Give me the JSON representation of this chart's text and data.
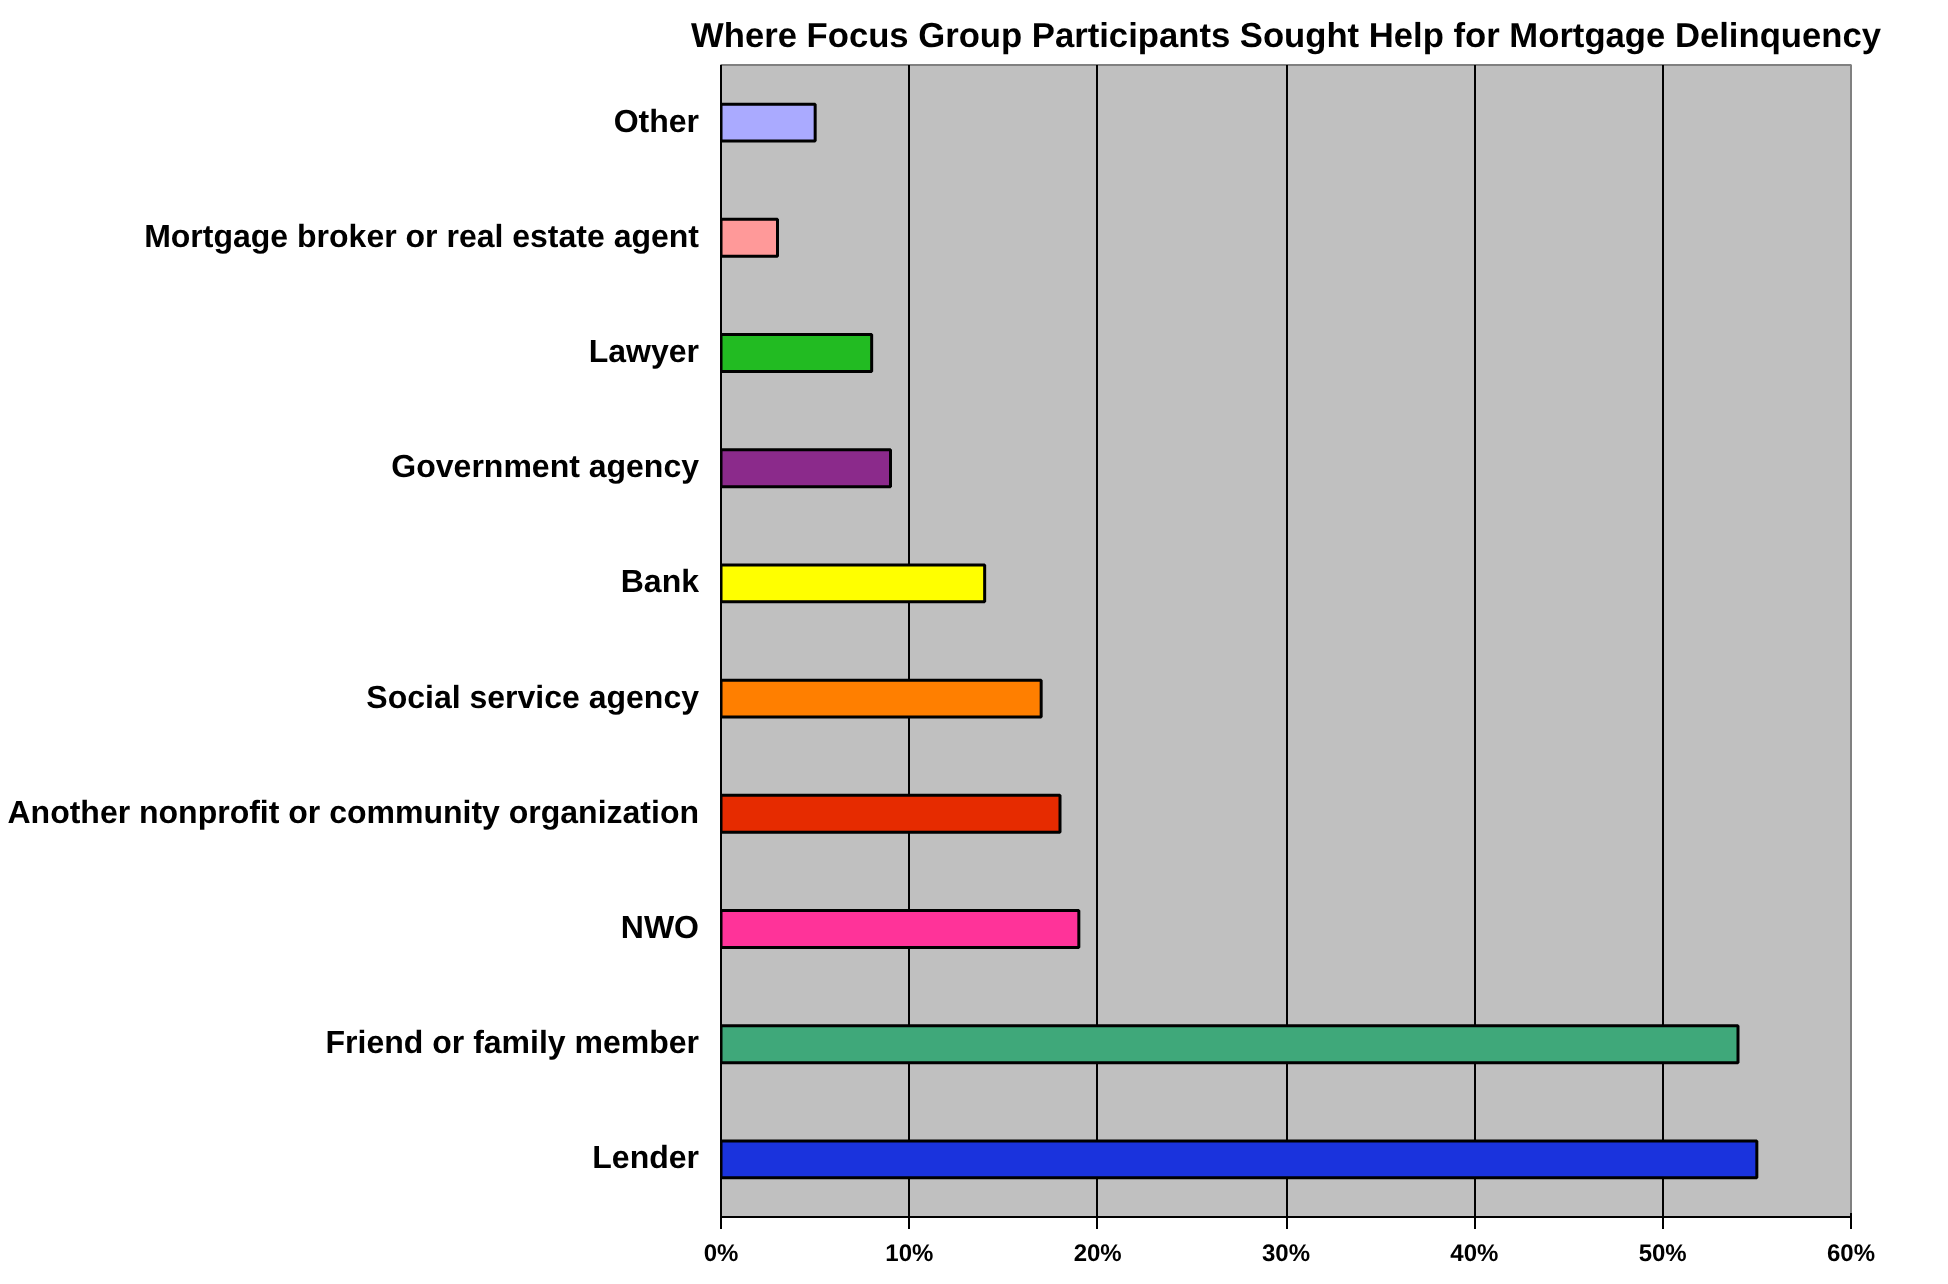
{
  "chart_data": {
    "type": "bar",
    "orientation": "horizontal",
    "title": "Where Focus Group Participants Sought Help for Mortgage Delinquency",
    "categories": [
      "Other",
      "Mortgage broker or real estate agent",
      "Lawyer",
      "Government agency",
      "Bank",
      "Social service agency",
      "Another nonprofit or community organization",
      "NWO",
      "Friend or family member",
      "Lender"
    ],
    "values": [
      5,
      3,
      8,
      9,
      14,
      17,
      18,
      19,
      54,
      55
    ],
    "colors": [
      "#aaaaff",
      "#ff9999",
      "#22bb22",
      "#8b2a8b",
      "#ffff00",
      "#ff7f00",
      "#e62b00",
      "#ff3399",
      "#3fa87a",
      "#1a33dd"
    ],
    "xlim": [
      0,
      60
    ],
    "xticks": [
      {
        "value": 0,
        "label": "0%"
      },
      {
        "value": 10,
        "label": "10%"
      },
      {
        "value": 20,
        "label": "20%"
      },
      {
        "value": 30,
        "label": "30%"
      },
      {
        "value": 40,
        "label": "40%"
      },
      {
        "value": 50,
        "label": "50%"
      },
      {
        "value": 60,
        "label": "60%"
      }
    ],
    "grid": "x"
  }
}
